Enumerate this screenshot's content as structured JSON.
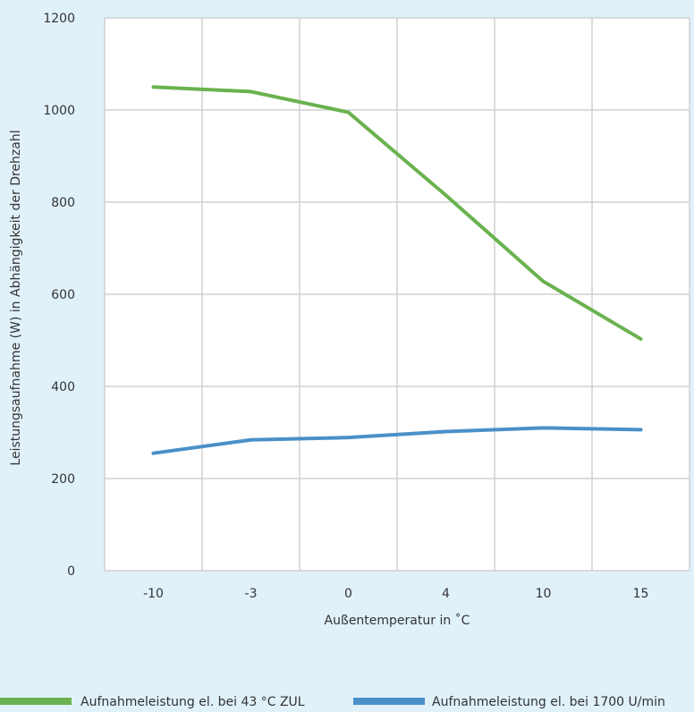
{
  "chart_data": {
    "type": "line",
    "categories": [
      "-10",
      "-3",
      "0",
      "4",
      "10",
      "15"
    ],
    "series": [
      {
        "name": "Aufnahmeleistung el. bei 43 °C ZUL",
        "values": [
          1050,
          1040,
          995,
          815,
          628,
          503
        ],
        "color": "#6ab24f"
      },
      {
        "name": "Aufnahmeleistung el. bei 1700 U/min",
        "values": [
          255,
          284,
          289,
          302,
          310,
          306
        ],
        "color": "#4a90c8"
      }
    ],
    "xlabel": "Außentemperatur in ˚C",
    "ylabel": "Leistungsaufnahme (W) in Abhängigkeit der Drehzahl",
    "ylim": [
      0,
      1200
    ],
    "yticks": [
      "0",
      "200",
      "400",
      "600",
      "800",
      "1000",
      "1200"
    ],
    "grid": true,
    "legend": "bottom",
    "colors": {
      "background": "#e0f1fa",
      "plot": "#ffffff",
      "grid": "#d0d0d0"
    }
  }
}
